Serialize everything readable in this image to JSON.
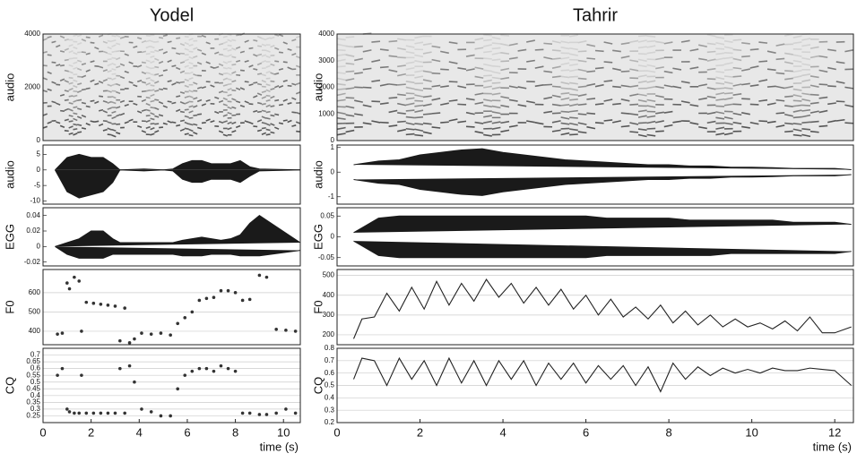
{
  "chart_data": [
    {
      "type": "spectrogram",
      "title": "Yodel",
      "ylabel": "audio",
      "xlim": [
        0,
        10.7
      ],
      "ylim": [
        0,
        4000
      ],
      "yticks": [
        0,
        2000,
        4000
      ]
    },
    {
      "type": "waveform",
      "ylabel": "audio",
      "xlim": [
        0,
        10.7
      ],
      "ylim": [
        -11,
        8
      ],
      "yticks": [
        -10,
        -5,
        0,
        5
      ],
      "x": [
        0.5,
        1,
        1.5,
        2,
        2.5,
        2.9,
        3.2,
        4.2,
        5,
        5.4,
        5.8,
        6.2,
        6.6,
        7,
        7.4,
        7.8,
        8.2,
        8.6,
        9,
        10.7
      ],
      "upper": [
        0,
        4,
        5,
        4,
        4,
        2,
        0,
        0.3,
        0,
        0.3,
        2,
        3,
        3,
        2,
        2,
        2,
        3,
        1,
        0.3,
        0
      ],
      "lower": [
        0,
        -7,
        -9,
        -8,
        -7,
        -4,
        0,
        -0.3,
        0,
        -0.3,
        -3,
        -4,
        -4,
        -3,
        -3,
        -3,
        -4,
        -2,
        -0.3,
        0
      ]
    },
    {
      "type": "waveform",
      "ylabel": "EGG",
      "xlim": [
        0,
        10.7
      ],
      "ylim": [
        -0.025,
        0.05
      ],
      "yticks": [
        -0.02,
        0,
        0.02,
        0.04
      ],
      "x": [
        0.5,
        1,
        1.5,
        2,
        2.5,
        2.9,
        3.2,
        4.2,
        5,
        5.4,
        5.8,
        6.2,
        6.6,
        7,
        7.4,
        7.8,
        8.2,
        8.6,
        9,
        10.7
      ],
      "upper": [
        0,
        0.005,
        0.01,
        0.02,
        0.02,
        0.01,
        0.005,
        0.005,
        0.005,
        0.005,
        0.008,
        0.01,
        0.012,
        0.01,
        0.008,
        0.01,
        0.015,
        0.03,
        0.04,
        0.005
      ],
      "lower": [
        0,
        -0.01,
        -0.015,
        -0.015,
        -0.015,
        -0.01,
        -0.01,
        -0.01,
        -0.01,
        -0.01,
        -0.012,
        -0.012,
        -0.012,
        -0.01,
        -0.01,
        -0.01,
        -0.012,
        -0.012,
        -0.012,
        -0.005
      ]
    },
    {
      "type": "scatter",
      "ylabel": "F0",
      "xlim": [
        0,
        10.7
      ],
      "ylim": [
        330,
        720
      ],
      "yticks": [
        400,
        500,
        600
      ],
      "grid": true,
      "x": [
        0.6,
        0.8,
        1.0,
        1.1,
        1.3,
        1.5,
        1.6,
        1.8,
        2.1,
        2.4,
        2.7,
        3.0,
        3.2,
        3.4,
        3.6,
        3.8,
        4.1,
        4.5,
        4.9,
        5.3,
        5.6,
        5.9,
        6.2,
        6.5,
        6.8,
        7.1,
        7.4,
        7.7,
        8.0,
        8.3,
        8.6,
        9.0,
        9.3,
        9.7,
        10.1,
        10.5
      ],
      "values": [
        385,
        390,
        650,
        620,
        680,
        660,
        400,
        550,
        545,
        540,
        535,
        530,
        350,
        520,
        340,
        360,
        390,
        385,
        390,
        380,
        440,
        470,
        500,
        560,
        570,
        575,
        610,
        610,
        600,
        560,
        565,
        690,
        680,
        410,
        405,
        400
      ]
    },
    {
      "type": "scatter",
      "ylabel": "CQ",
      "xlim": [
        0,
        10.7
      ],
      "ylim": [
        0.2,
        0.75
      ],
      "yticks": [
        0.25,
        0.3,
        0.35,
        0.4,
        0.45,
        0.5,
        0.55,
        0.6,
        0.65,
        0.7
      ],
      "grid": true,
      "xticks": [
        0,
        2,
        4,
        6,
        8,
        10
      ],
      "xlabel": "time (s)",
      "x": [
        0.6,
        0.8,
        1.0,
        1.1,
        1.3,
        1.5,
        1.6,
        1.8,
        2.1,
        2.4,
        2.7,
        3.0,
        3.2,
        3.4,
        3.6,
        3.8,
        4.1,
        4.5,
        4.9,
        5.3,
        5.6,
        5.9,
        6.2,
        6.5,
        6.8,
        7.1,
        7.4,
        7.7,
        8.0,
        8.3,
        8.6,
        9.0,
        9.3,
        9.7,
        10.1,
        10.5
      ],
      "values": [
        0.55,
        0.6,
        0.3,
        0.28,
        0.27,
        0.27,
        0.55,
        0.27,
        0.27,
        0.27,
        0.27,
        0.27,
        0.6,
        0.27,
        0.62,
        0.5,
        0.3,
        0.28,
        0.25,
        0.25,
        0.45,
        0.55,
        0.58,
        0.6,
        0.6,
        0.58,
        0.62,
        0.6,
        0.58,
        0.27,
        0.27,
        0.26,
        0.26,
        0.27,
        0.3,
        0.27
      ]
    },
    {
      "type": "spectrogram",
      "title": "Tahrir",
      "ylabel": "audio",
      "xlim": [
        0,
        12.45
      ],
      "ylim": [
        0,
        4000
      ],
      "yticks": [
        0,
        1000,
        2000,
        3000,
        4000
      ]
    },
    {
      "type": "waveform",
      "ylabel": "audio",
      "xlim": [
        0,
        12.45
      ],
      "ylim": [
        -1.3,
        1.1
      ],
      "yticks": [
        -1,
        0,
        1
      ],
      "x": [
        0.4,
        1,
        1.5,
        2,
        2.5,
        3,
        3.5,
        4,
        4.5,
        5,
        5.5,
        6,
        6.5,
        7,
        7.5,
        8,
        8.5,
        9,
        9.5,
        10,
        10.5,
        11,
        11.5,
        12,
        12.4
      ],
      "upper": [
        0.3,
        0.45,
        0.5,
        0.7,
        0.8,
        0.9,
        0.95,
        0.8,
        0.7,
        0.6,
        0.5,
        0.45,
        0.4,
        0.35,
        0.3,
        0.3,
        0.25,
        0.25,
        0.2,
        0.2,
        0.18,
        0.15,
        0.15,
        0.15,
        0.1
      ],
      "lower": [
        -0.3,
        -0.45,
        -0.5,
        -0.7,
        -0.8,
        -0.9,
        -0.95,
        -0.8,
        -0.7,
        -0.6,
        -0.5,
        -0.45,
        -0.4,
        -0.35,
        -0.3,
        -0.3,
        -0.25,
        -0.25,
        -0.2,
        -0.2,
        -0.18,
        -0.15,
        -0.15,
        -0.15,
        -0.1
      ]
    },
    {
      "type": "waveform",
      "ylabel": "EGG",
      "xlim": [
        0,
        12.45
      ],
      "ylim": [
        -0.07,
        0.07
      ],
      "yticks": [
        -0.05,
        0,
        0.05
      ],
      "x": [
        0.4,
        1,
        1.5,
        2,
        2.5,
        3,
        3.5,
        4,
        4.5,
        5,
        5.5,
        6,
        6.5,
        7,
        7.5,
        8,
        8.5,
        9,
        9.5,
        10,
        10.5,
        11,
        11.5,
        12,
        12.4
      ],
      "upper": [
        0.01,
        0.045,
        0.05,
        0.05,
        0.05,
        0.05,
        0.05,
        0.05,
        0.05,
        0.05,
        0.05,
        0.05,
        0.045,
        0.045,
        0.045,
        0.045,
        0.04,
        0.04,
        0.04,
        0.04,
        0.04,
        0.035,
        0.035,
        0.035,
        0.03
      ],
      "lower": [
        -0.01,
        -0.045,
        -0.05,
        -0.05,
        -0.05,
        -0.05,
        -0.05,
        -0.05,
        -0.05,
        -0.05,
        -0.05,
        -0.05,
        -0.045,
        -0.045,
        -0.045,
        -0.045,
        -0.045,
        -0.045,
        -0.04,
        -0.04,
        -0.04,
        -0.04,
        -0.04,
        -0.04,
        -0.035
      ]
    },
    {
      "type": "line",
      "ylabel": "F0",
      "xlim": [
        0,
        12.45
      ],
      "ylim": [
        150,
        530
      ],
      "yticks": [
        200,
        300,
        400,
        500
      ],
      "grid": true,
      "x": [
        0.4,
        0.6,
        0.9,
        1.2,
        1.5,
        1.8,
        2.1,
        2.4,
        2.7,
        3.0,
        3.3,
        3.6,
        3.9,
        4.2,
        4.5,
        4.8,
        5.1,
        5.4,
        5.7,
        6.0,
        6.3,
        6.6,
        6.9,
        7.2,
        7.5,
        7.8,
        8.1,
        8.4,
        8.7,
        9.0,
        9.3,
        9.6,
        9.9,
        10.2,
        10.5,
        10.8,
        11.1,
        11.4,
        11.7,
        12.0,
        12.4
      ],
      "values": [
        180,
        280,
        290,
        410,
        320,
        440,
        330,
        470,
        350,
        460,
        370,
        480,
        390,
        460,
        360,
        440,
        350,
        430,
        330,
        400,
        300,
        380,
        290,
        340,
        280,
        350,
        260,
        320,
        250,
        300,
        240,
        280,
        240,
        260,
        230,
        270,
        220,
        290,
        210,
        210,
        240
      ]
    },
    {
      "type": "line",
      "ylabel": "CQ",
      "xlim": [
        0,
        12.45
      ],
      "ylim": [
        0.2,
        0.8
      ],
      "yticks": [
        0.2,
        0.3,
        0.4,
        0.5,
        0.6,
        0.7,
        0.8
      ],
      "grid": true,
      "xticks": [
        0,
        2,
        4,
        6,
        8,
        10,
        12
      ],
      "xlabel": "time (s)",
      "x": [
        0.4,
        0.6,
        0.9,
        1.2,
        1.5,
        1.8,
        2.1,
        2.4,
        2.7,
        3.0,
        3.3,
        3.6,
        3.9,
        4.2,
        4.5,
        4.8,
        5.1,
        5.4,
        5.7,
        6.0,
        6.3,
        6.6,
        6.9,
        7.2,
        7.5,
        7.8,
        8.1,
        8.4,
        8.7,
        9.0,
        9.3,
        9.6,
        9.9,
        10.2,
        10.5,
        10.8,
        11.1,
        11.4,
        11.7,
        12.0,
        12.4
      ],
      "values": [
        0.55,
        0.72,
        0.7,
        0.5,
        0.72,
        0.55,
        0.7,
        0.5,
        0.72,
        0.52,
        0.7,
        0.5,
        0.7,
        0.55,
        0.7,
        0.5,
        0.68,
        0.55,
        0.68,
        0.52,
        0.66,
        0.55,
        0.66,
        0.5,
        0.65,
        0.45,
        0.68,
        0.55,
        0.65,
        0.58,
        0.64,
        0.6,
        0.63,
        0.6,
        0.64,
        0.62,
        0.62,
        0.64,
        0.63,
        0.62,
        0.5
      ]
    }
  ]
}
